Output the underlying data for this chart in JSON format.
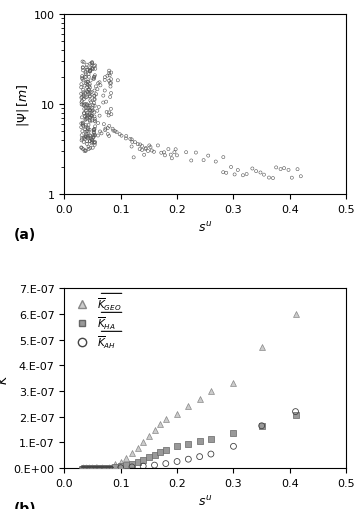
{
  "panel_a": {
    "ylabel": "$|\\Psi|\\,[m]$",
    "xlabel": "$s^u$",
    "ylim_log": [
      1,
      100
    ],
    "xlim": [
      0,
      0.5
    ],
    "xticks": [
      0,
      0.1,
      0.2,
      0.3,
      0.4,
      0.5
    ],
    "yticks": [
      1,
      10,
      100
    ],
    "scatter_color": "#555555",
    "markersize": 3.5,
    "label_text": "(a)"
  },
  "panel_b": {
    "ylabel": "$\\bar{K}$",
    "xlabel": "$s^u$",
    "ylim": [
      0,
      7e-07
    ],
    "xlim": [
      0,
      0.5
    ],
    "xticks": [
      0,
      0.1,
      0.2,
      0.3,
      0.4,
      0.5
    ],
    "yticks": [
      0,
      1e-07,
      2e-07,
      3e-07,
      4e-07,
      5e-07,
      6e-07,
      7e-07
    ],
    "color_geo": "#bbbbbb",
    "color_ha": "#888888",
    "color_ah": "#444444",
    "label_text": "(b)"
  }
}
